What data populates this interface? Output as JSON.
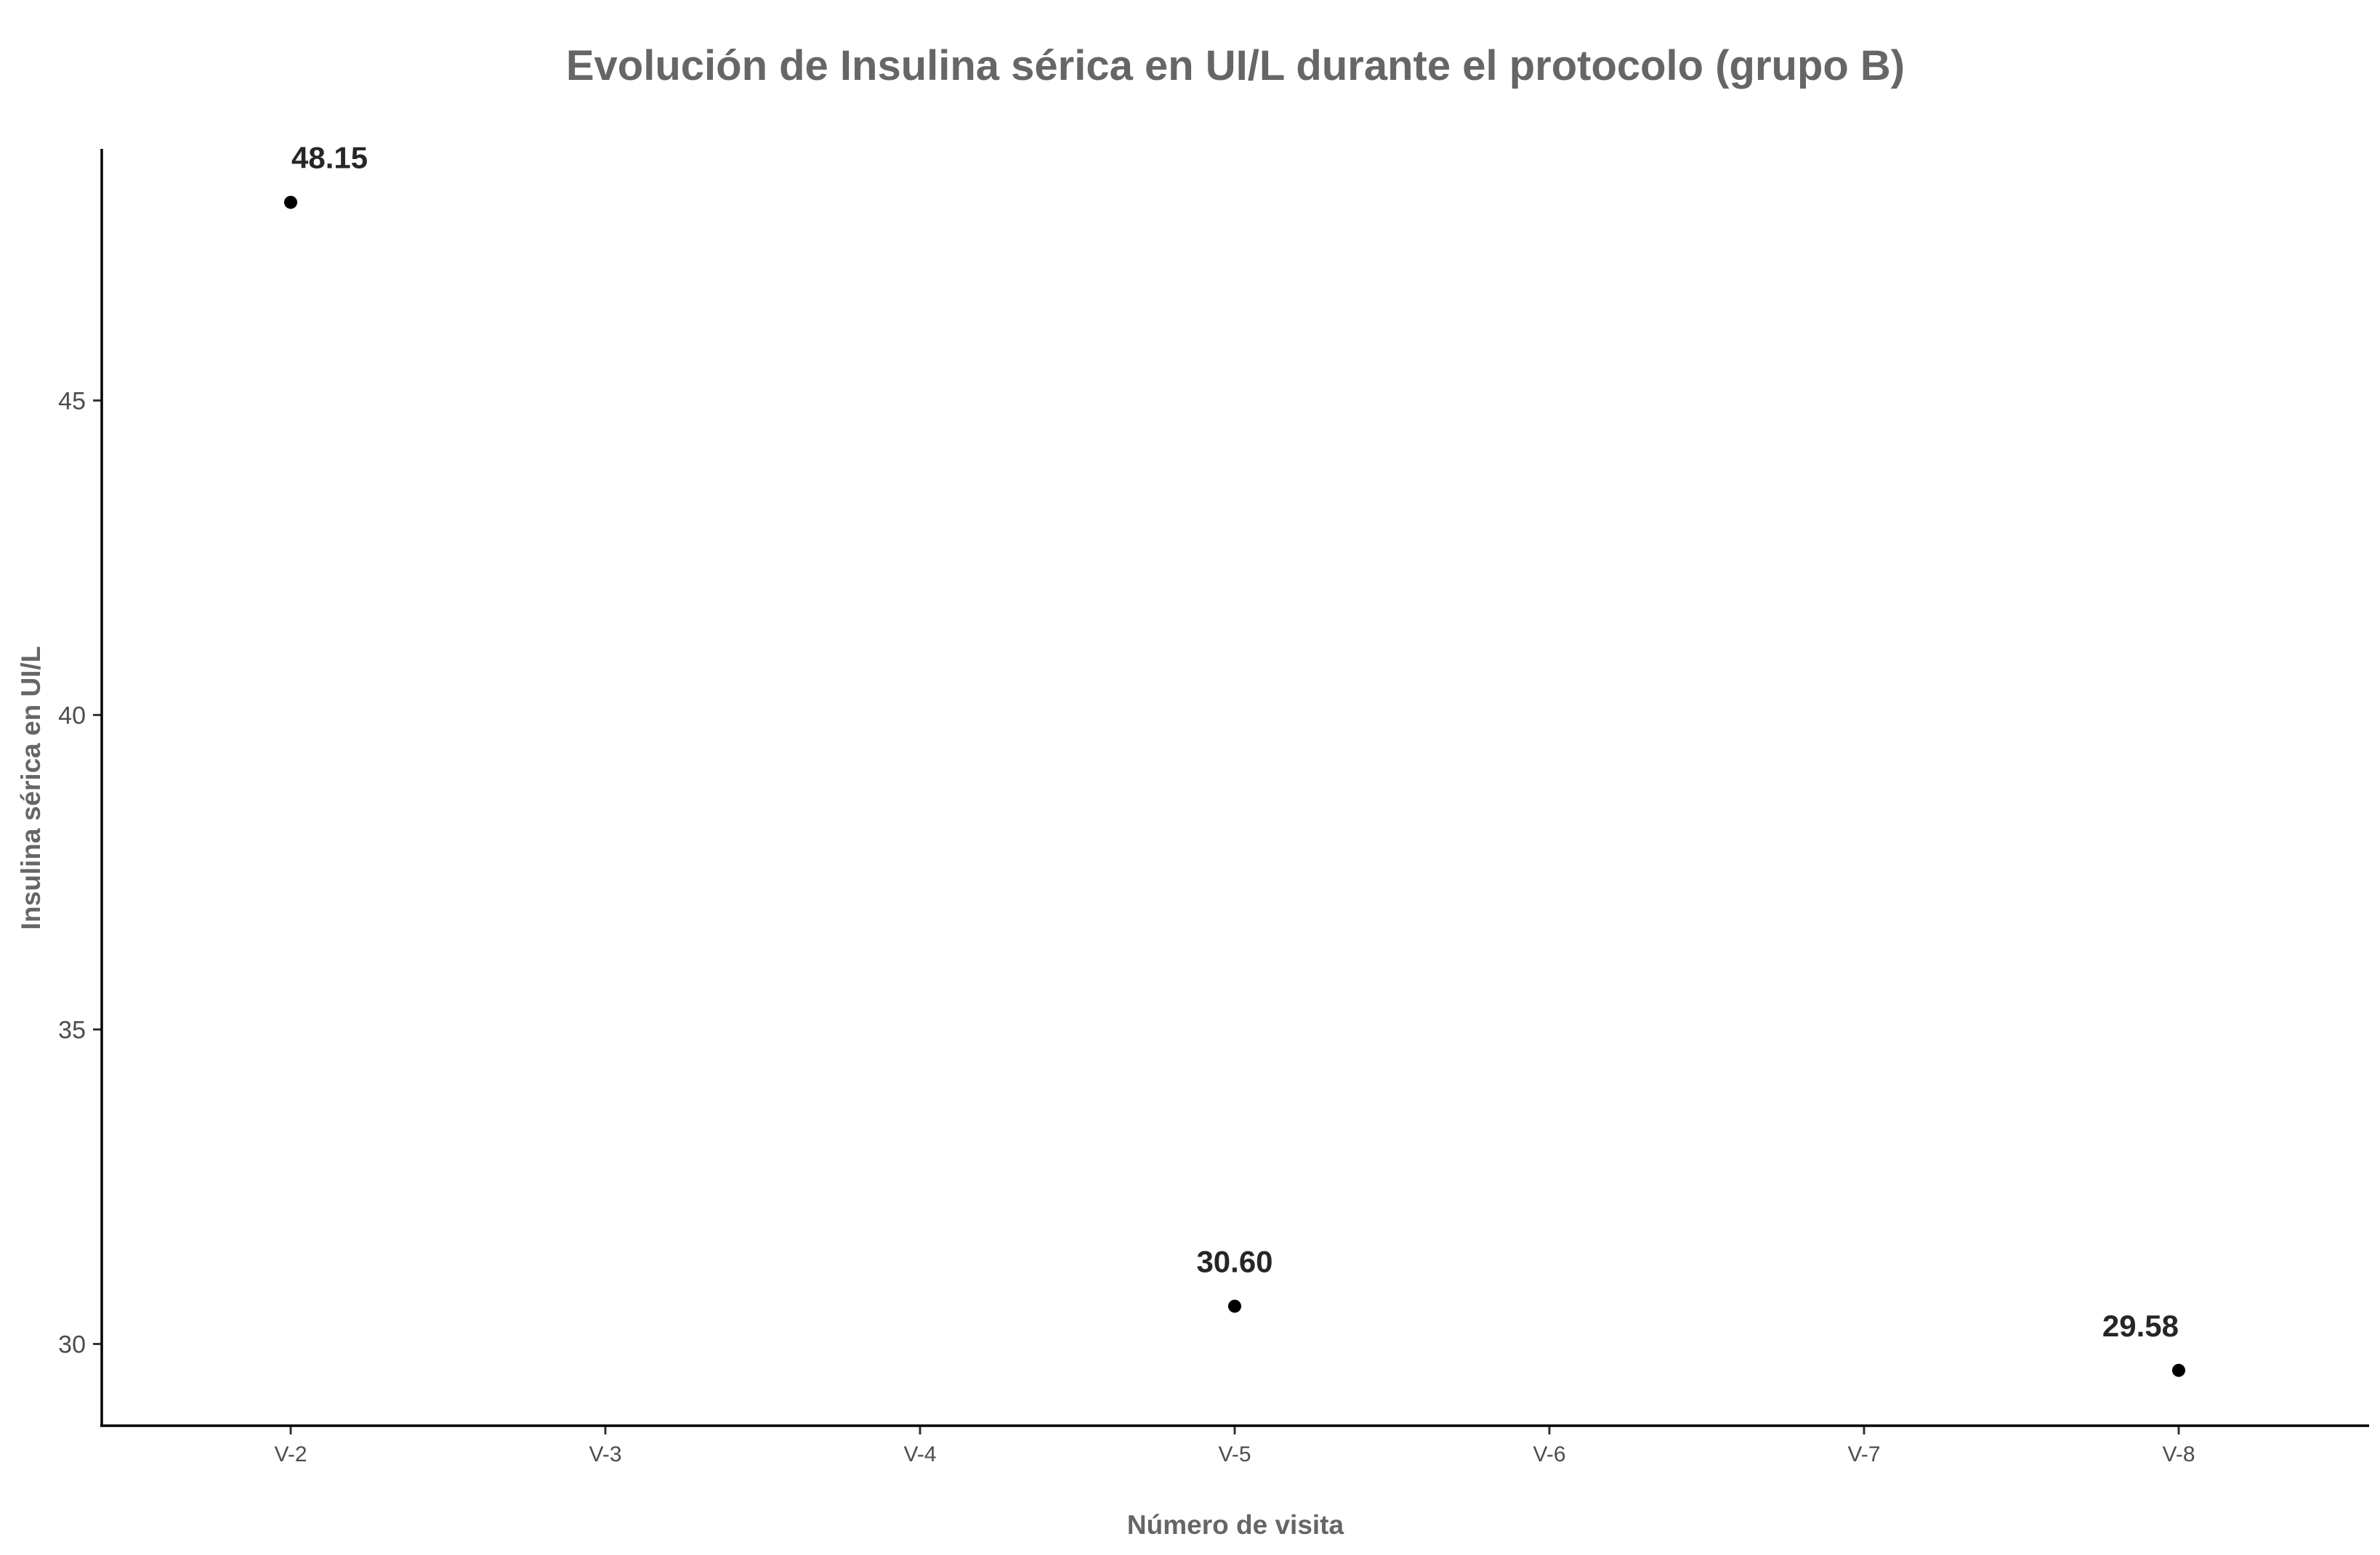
{
  "chart_data": {
    "type": "scatter",
    "title": "Evolución de Insulina sérica en UI/L durante el protocolo (grupo B)",
    "xlabel": "Número de visita",
    "ylabel": "Insulina sérica en UI/L",
    "categories": [
      "V-2",
      "V-3",
      "V-4",
      "V-5",
      "V-6",
      "V-7",
      "V-8"
    ],
    "points": [
      {
        "x": "V-2",
        "y": 48.15,
        "label": "48.15"
      },
      {
        "x": "V-5",
        "y": 30.6,
        "label": "30.60"
      },
      {
        "x": "V-8",
        "y": 29.58,
        "label": "29.58"
      }
    ],
    "yticks": [
      30,
      35,
      40,
      45
    ],
    "ylim": [
      28.7,
      49.0
    ],
    "grid": false,
    "colors": {
      "point": "#000000",
      "title": "#666666",
      "label": "#262626"
    }
  }
}
